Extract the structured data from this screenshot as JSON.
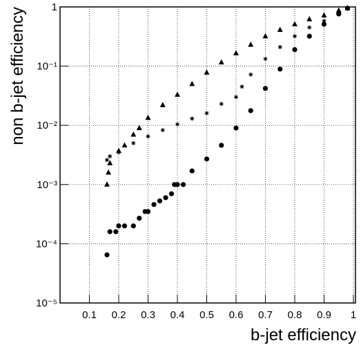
{
  "chart_data": {
    "type": "scatter",
    "xlabel": "b-jet efficiency",
    "ylabel": "non b-jet efficiency",
    "xlim": [
      0,
      1
    ],
    "ylim": [
      1e-05,
      1
    ],
    "ylog": true,
    "grid": true,
    "xticks": [
      0.1,
      0.2,
      0.3,
      0.4,
      0.5,
      0.6,
      0.7,
      0.8,
      0.9,
      1
    ],
    "yticks": [
      {
        "value": 1e-05,
        "label": "10⁻⁵"
      },
      {
        "value": 0.0001,
        "label": "10⁻⁴"
      },
      {
        "value": 0.001,
        "label": "10⁻³"
      },
      {
        "value": 0.01,
        "label": "10⁻²"
      },
      {
        "value": 0.1,
        "label": "10⁻¹"
      },
      1
    ],
    "series": [
      {
        "marker": "triangle",
        "color": "#000000",
        "x": [
          0.16,
          0.165,
          0.17,
          0.2,
          0.22,
          0.25,
          0.27,
          0.3,
          0.35,
          0.4,
          0.45,
          0.5,
          0.55,
          0.6,
          0.65,
          0.7,
          0.75,
          0.8,
          0.85,
          0.9,
          0.95,
          0.98
        ],
        "values": [
          0.001,
          0.0016,
          0.0023,
          0.0037,
          0.0046,
          0.007,
          0.009,
          0.0134,
          0.022,
          0.033,
          0.05,
          0.078,
          0.116,
          0.165,
          0.23,
          0.32,
          0.41,
          0.51,
          0.62,
          0.72,
          0.87,
          0.95
        ]
      },
      {
        "marker": "star",
        "color": "#000000",
        "x": [
          0.16,
          0.17,
          0.2,
          0.25,
          0.3,
          0.35,
          0.4,
          0.45,
          0.5,
          0.55,
          0.6,
          0.62,
          0.65,
          0.7,
          0.75,
          0.8,
          0.85,
          0.9,
          0.95,
          0.98
        ],
        "values": [
          0.0026,
          0.003,
          0.0035,
          0.005,
          0.0065,
          0.0083,
          0.0104,
          0.013,
          0.016,
          0.023,
          0.03,
          0.045,
          0.072,
          0.133,
          0.21,
          0.32,
          0.45,
          0.58,
          0.8,
          0.95
        ]
      },
      {
        "marker": "circle",
        "color": "#000000",
        "x": [
          0.16,
          0.17,
          0.19,
          0.2,
          0.22,
          0.25,
          0.27,
          0.29,
          0.3,
          0.32,
          0.34,
          0.36,
          0.38,
          0.39,
          0.4,
          0.42,
          0.45,
          0.5,
          0.55,
          0.6,
          0.65,
          0.7,
          0.75,
          0.8,
          0.85,
          0.9,
          0.95,
          0.98
        ],
        "values": [
          6.5e-05,
          0.00016,
          0.00016,
          0.0002,
          0.0002,
          0.0002,
          0.00027,
          0.00035,
          0.00035,
          0.00046,
          0.00053,
          0.0006,
          0.0007,
          0.001,
          0.001,
          0.001,
          0.0017,
          0.0027,
          0.0046,
          0.009,
          0.0177,
          0.042,
          0.089,
          0.19,
          0.32,
          0.51,
          0.76,
          0.95
        ]
      }
    ]
  }
}
